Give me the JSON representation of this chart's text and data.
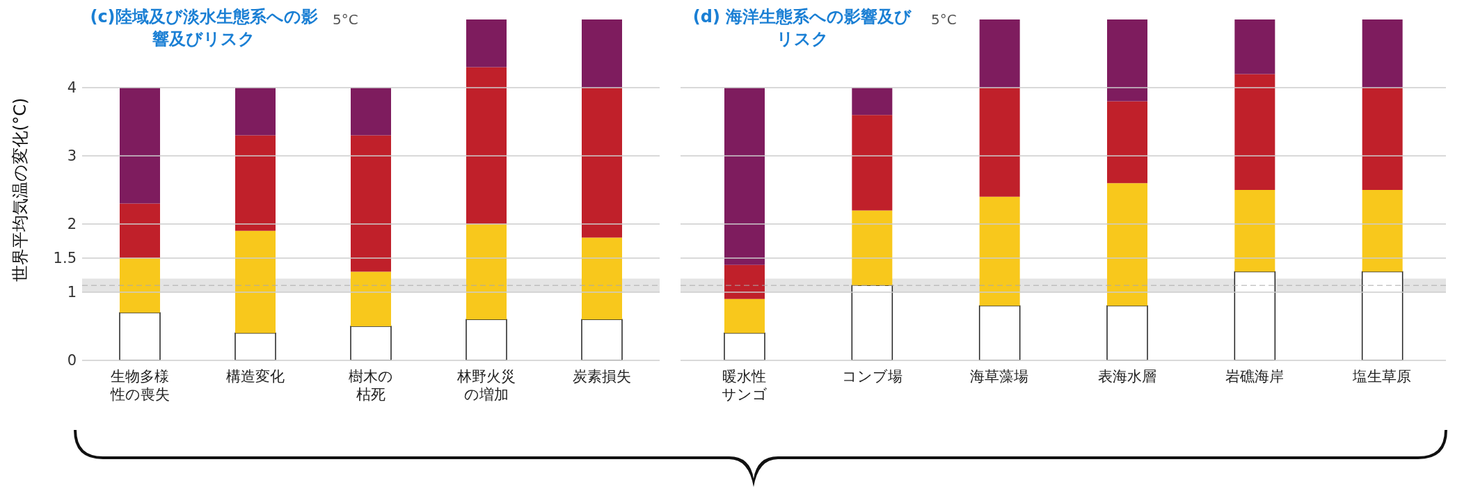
{
  "chart_data": [
    {
      "type": "bar",
      "title": "(c)陸域及び淡水生態系への影響及びリスク",
      "ylabel": "世界平均気温の変化(°C)",
      "categories": [
        "生物多様性の喪失",
        "構造変化",
        "樹木の枯死",
        "林野火災の増加",
        "炭素損失"
      ],
      "stacked": true,
      "series": [
        {
          "color": "#ffffff",
          "values": [
            0.7,
            0.4,
            0.5,
            0.6,
            0.6
          ]
        },
        {
          "color": "#f8c81c",
          "values": [
            0.8,
            1.5,
            0.8,
            1.4,
            1.2
          ]
        },
        {
          "color": "#c0202a",
          "values": [
            0.8,
            1.4,
            2.0,
            2.3,
            2.2
          ]
        },
        {
          "color": "#7e1c5e",
          "values": [
            1.7,
            0.7,
            0.7,
            0.7,
            1.0
          ]
        }
      ],
      "ylim": [
        0,
        5
      ],
      "yticks": [
        0,
        1,
        1.5,
        2,
        3,
        4
      ],
      "grid": "y",
      "bands": [
        {
          "axis": "y",
          "from": 1.0,
          "to": 1.2,
          "color": "#e4e4e4"
        }
      ],
      "ref_lines": [
        {
          "axis": "y",
          "value": 1.1,
          "color": "#aaaaaa",
          "line_style": "dashed"
        }
      ],
      "annotations": [
        "5°C"
      ]
    },
    {
      "type": "bar",
      "title": "(d) 海洋生態系への影響及びリスク",
      "categories": [
        "暖水性サンゴ",
        "コンブ場",
        "海草藻場",
        "表海水層",
        "岩礁海岸",
        "塩生草原"
      ],
      "stacked": true,
      "series": [
        {
          "color": "#ffffff",
          "values": [
            0.4,
            1.1,
            0.8,
            0.8,
            1.3,
            1.3
          ]
        },
        {
          "color": "#f8c81c",
          "values": [
            0.5,
            1.1,
            1.6,
            1.8,
            1.2,
            1.2
          ]
        },
        {
          "color": "#c0202a",
          "values": [
            0.5,
            1.4,
            1.6,
            1.2,
            1.7,
            1.5
          ]
        },
        {
          "color": "#7e1c5e",
          "values": [
            2.6,
            0.4,
            1.0,
            1.2,
            0.8,
            1.0
          ]
        }
      ],
      "ylim": [
        0,
        5
      ],
      "yticks": [
        0,
        1,
        1.5,
        2,
        3,
        4
      ],
      "grid": "y",
      "tick_labels": "x",
      "bands": [
        {
          "axis": "y",
          "from": 1.0,
          "to": 1.2,
          "color": "#e4e4e4"
        }
      ],
      "ref_lines": [
        {
          "axis": "y",
          "value": 1.1,
          "color": "#aaaaaa",
          "line_style": "dashed"
        }
      ],
      "annotations": [
        "5°C"
      ]
    }
  ]
}
